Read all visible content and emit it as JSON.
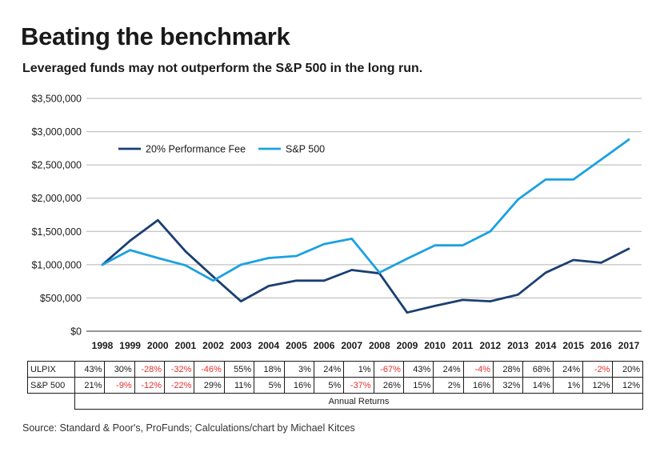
{
  "title": "Beating the benchmark",
  "subtitle": "Leveraged funds may not outperform the S&P 500 in the long run.",
  "source": "Source: Standard & Poor's, ProFunds; Calculations/chart by Michael Kitces",
  "colors": {
    "series1": "#1b3f72",
    "series2": "#1ba1e2",
    "grid": "#b5b5b5",
    "negative": "#e0312f"
  },
  "chart_data": {
    "type": "line",
    "title": "Beating the benchmark",
    "subtitle": "Leveraged funds may not outperform the S&P 500 in the long run.",
    "xlabel": "",
    "ylabel": "",
    "categories": [
      "1998",
      "1999",
      "2000",
      "2001",
      "2002",
      "2003",
      "2004",
      "2005",
      "2006",
      "2007",
      "2008",
      "2009",
      "2010",
      "2011",
      "2012",
      "2013",
      "2014",
      "2015",
      "2016",
      "2017"
    ],
    "yticks": [
      0,
      500000,
      1000000,
      1500000,
      2000000,
      2500000,
      3000000,
      3500000
    ],
    "ytick_labels": [
      "$0",
      "$500,000",
      "$1,000,000",
      "$1,500,000",
      "$2,000,000",
      "$2,500,000",
      "$3,000,000",
      "$3,500,000"
    ],
    "ylim": [
      0,
      3500000
    ],
    "grid": true,
    "legend_position": "upper-left",
    "series": [
      {
        "name": "20% Performance Fee",
        "color": "#1b3f72",
        "values": [
          1000000,
          1360000,
          1670000,
          1200000,
          820000,
          450000,
          680000,
          760000,
          760000,
          920000,
          870000,
          280000,
          380000,
          470000,
          450000,
          550000,
          880000,
          1070000,
          1030000,
          1240000
        ]
      },
      {
        "name": "S&P 500",
        "color": "#1ba1e2",
        "values": [
          1000000,
          1220000,
          1100000,
          990000,
          760000,
          1000000,
          1100000,
          1130000,
          1310000,
          1390000,
          880000,
          1090000,
          1290000,
          1290000,
          1500000,
          1980000,
          2280000,
          2280000,
          2580000,
          2880000
        ]
      }
    ]
  },
  "returns_table": {
    "rows": [
      {
        "label": "ULPIX",
        "cells": [
          {
            "text": "43%",
            "neg": false
          },
          {
            "text": "30%",
            "neg": false
          },
          {
            "text": "-28%",
            "neg": true
          },
          {
            "text": "-32%",
            "neg": true
          },
          {
            "text": "-46%",
            "neg": true
          },
          {
            "text": "55%",
            "neg": false
          },
          {
            "text": "18%",
            "neg": false
          },
          {
            "text": "3%",
            "neg": false
          },
          {
            "text": "24%",
            "neg": false
          },
          {
            "text": "1%",
            "neg": false
          },
          {
            "text": "-67%",
            "neg": true
          },
          {
            "text": "43%",
            "neg": false
          },
          {
            "text": "24%",
            "neg": false
          },
          {
            "text": "-4%",
            "neg": true
          },
          {
            "text": "28%",
            "neg": false
          },
          {
            "text": "68%",
            "neg": false
          },
          {
            "text": "24%",
            "neg": false
          },
          {
            "text": "-2%",
            "neg": true
          },
          {
            "text": "20%",
            "neg": false
          }
        ]
      },
      {
        "label": "S&P 500",
        "cells": [
          {
            "text": "21%",
            "neg": false
          },
          {
            "text": "-9%",
            "neg": true
          },
          {
            "text": "-12%",
            "neg": true
          },
          {
            "text": "-22%",
            "neg": true
          },
          {
            "text": "29%",
            "neg": false
          },
          {
            "text": "11%",
            "neg": false
          },
          {
            "text": "5%",
            "neg": false
          },
          {
            "text": "16%",
            "neg": false
          },
          {
            "text": "5%",
            "neg": false
          },
          {
            "text": "-37%",
            "neg": true
          },
          {
            "text": "26%",
            "neg": false
          },
          {
            "text": "15%",
            "neg": false
          },
          {
            "text": "2%",
            "neg": false
          },
          {
            "text": "16%",
            "neg": false
          },
          {
            "text": "32%",
            "neg": false
          },
          {
            "text": "14%",
            "neg": false
          },
          {
            "text": "1%",
            "neg": false
          },
          {
            "text": "12%",
            "neg": false
          },
          {
            "text": "12%",
            "neg": false
          }
        ]
      }
    ],
    "footer": "Annual Returns"
  }
}
